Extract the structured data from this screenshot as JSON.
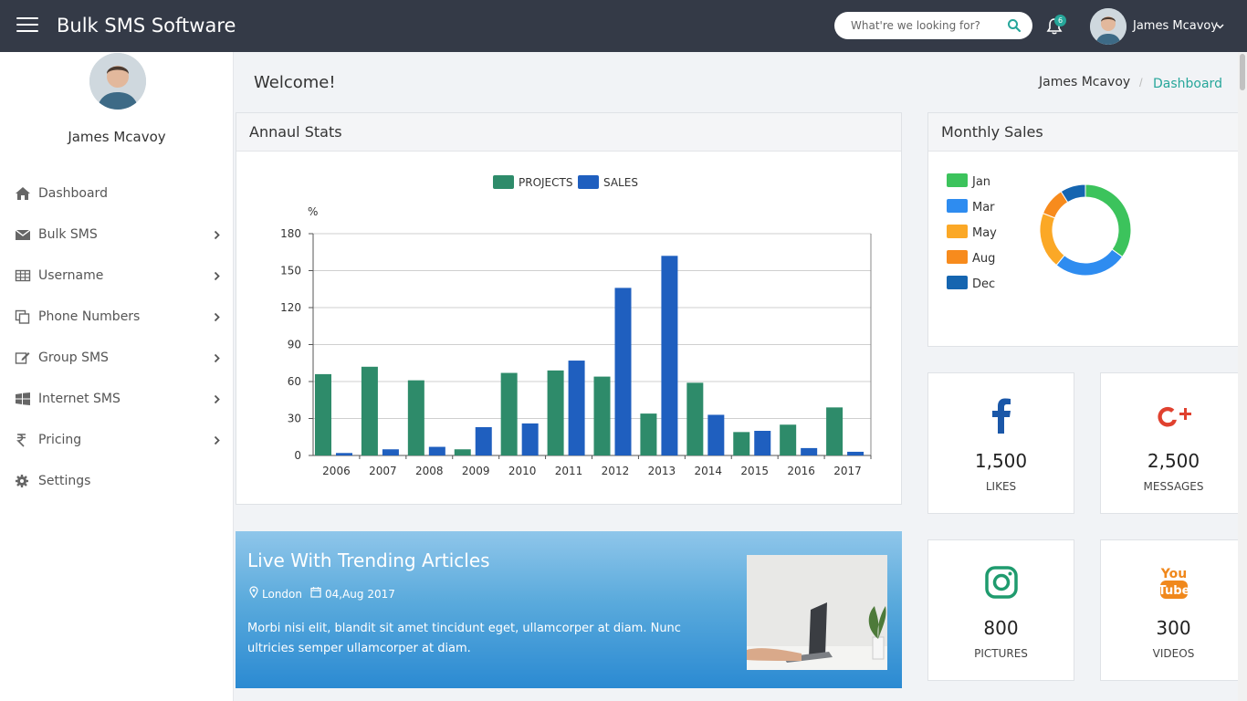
{
  "app": {
    "title": "Bulk SMS Software"
  },
  "search": {
    "placeholder": "What're we looking for?"
  },
  "notifications": {
    "count": "6"
  },
  "user": {
    "name": "James Mcavoy"
  },
  "sidebar": {
    "items": [
      {
        "label": "Dashboard",
        "icon": "home-icon",
        "has_submenu": false
      },
      {
        "label": "Bulk SMS",
        "icon": "envelope-icon",
        "has_submenu": true
      },
      {
        "label": "Username",
        "icon": "table-icon",
        "has_submenu": true
      },
      {
        "label": "Phone Numbers",
        "icon": "copy-icon",
        "has_submenu": true
      },
      {
        "label": "Group SMS",
        "icon": "edit-icon",
        "has_submenu": true
      },
      {
        "label": "Internet SMS",
        "icon": "windows-icon",
        "has_submenu": true
      },
      {
        "label": "Pricing",
        "icon": "rupee-icon",
        "has_submenu": true
      },
      {
        "label": "Settings",
        "icon": "gear-icon",
        "has_submenu": false
      }
    ]
  },
  "page": {
    "welcome": "Welcome!"
  },
  "breadcrumb": {
    "user": "James Mcavoy",
    "separator": "/",
    "current": "Dashboard"
  },
  "annual": {
    "title": "Annaul Stats"
  },
  "monthly": {
    "title": "Monthly Sales"
  },
  "colors": {
    "accent": "#26a69a",
    "topbar": "#343a47",
    "projects": "#2e8b6a",
    "sales": "#1f5fbf"
  },
  "chart_data": [
    {
      "type": "bar",
      "title": "",
      "xlabel": "",
      "ylabel": "%",
      "categories": [
        "2006",
        "2007",
        "2008",
        "2009",
        "2010",
        "2011",
        "2012",
        "2013",
        "2014",
        "2015",
        "2016",
        "2017"
      ],
      "series": [
        {
          "name": "PROJECTS",
          "color": "#2e8b6a",
          "values": [
            66,
            72,
            61,
            5,
            67,
            69,
            64,
            34,
            59,
            19,
            25,
            39
          ]
        },
        {
          "name": "SALES",
          "color": "#1f5fbf",
          "values": [
            2,
            5,
            7,
            23,
            26,
            77,
            136,
            162,
            33,
            20,
            6,
            3
          ]
        }
      ],
      "yticks": [
        0,
        30,
        60,
        90,
        120,
        150,
        180
      ],
      "ylim": [
        0,
        180
      ],
      "grid": true,
      "legend": "top-center"
    },
    {
      "type": "pie",
      "title": "",
      "legend": "left",
      "slices": [
        {
          "label": "Jan",
          "value": 35,
          "color": "#3cc35c"
        },
        {
          "label": "Mar",
          "value": 26,
          "color": "#2e8cf0"
        },
        {
          "label": "May",
          "value": 20,
          "color": "#fba826"
        },
        {
          "label": "Aug",
          "value": 10,
          "color": "#f78b1d"
        },
        {
          "label": "Dec",
          "value": 9,
          "color": "#1565b0"
        }
      ]
    }
  ],
  "stats": [
    {
      "value": "1,500",
      "label": "LIKES",
      "icon": "facebook-icon"
    },
    {
      "value": "2,500",
      "label": "MESSAGES",
      "icon": "google-plus-icon"
    },
    {
      "value": "800",
      "label": "PICTURES",
      "icon": "instagram-icon"
    },
    {
      "value": "300",
      "label": "VIDEOS",
      "icon": "youtube-icon"
    }
  ],
  "article": {
    "title": "Live With Trending Articles",
    "location": "London",
    "date": "04,Aug 2017",
    "body": "Morbi nisi elit, blandit sit amet tincidunt eget, ullamcorper at diam. Nunc ultricies semper ullamcorper at diam."
  }
}
